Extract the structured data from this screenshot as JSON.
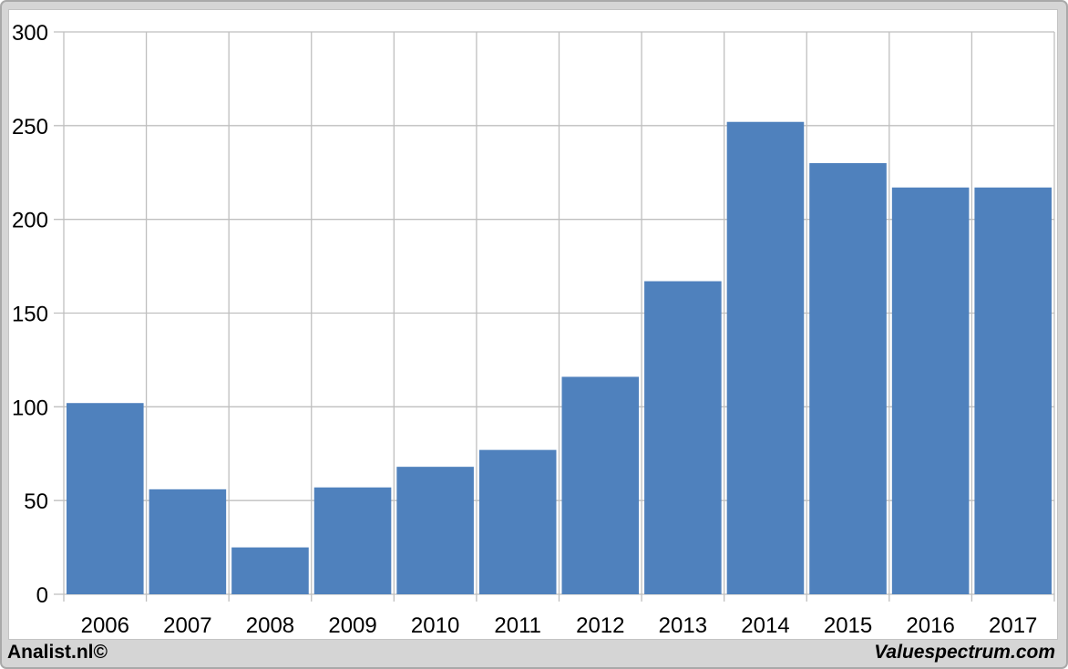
{
  "footer": {
    "left": "Analist.nl©",
    "right": "Valuespectrum.com"
  },
  "colors": {
    "bar": "#4f81bd",
    "grid": "#bfbfbf",
    "text": "#000000",
    "panel_bg": "#ffffff",
    "frame_bg": "#d5d5d5",
    "frame_border": "#a9a9a9"
  },
  "chart_data": {
    "type": "bar",
    "title": "",
    "xlabel": "",
    "ylabel": "",
    "categories": [
      "2006",
      "2007",
      "2008",
      "2009",
      "2010",
      "2011",
      "2012",
      "2013",
      "2014",
      "2015",
      "2016",
      "2017"
    ],
    "values": [
      102,
      56,
      25,
      57,
      68,
      77,
      116,
      167,
      252,
      230,
      217,
      217
    ],
    "ylim": [
      0,
      300
    ],
    "yticks": [
      0,
      50,
      100,
      150,
      200,
      250,
      300
    ],
    "grid": true,
    "vertical_grid": true,
    "legend": false
  }
}
